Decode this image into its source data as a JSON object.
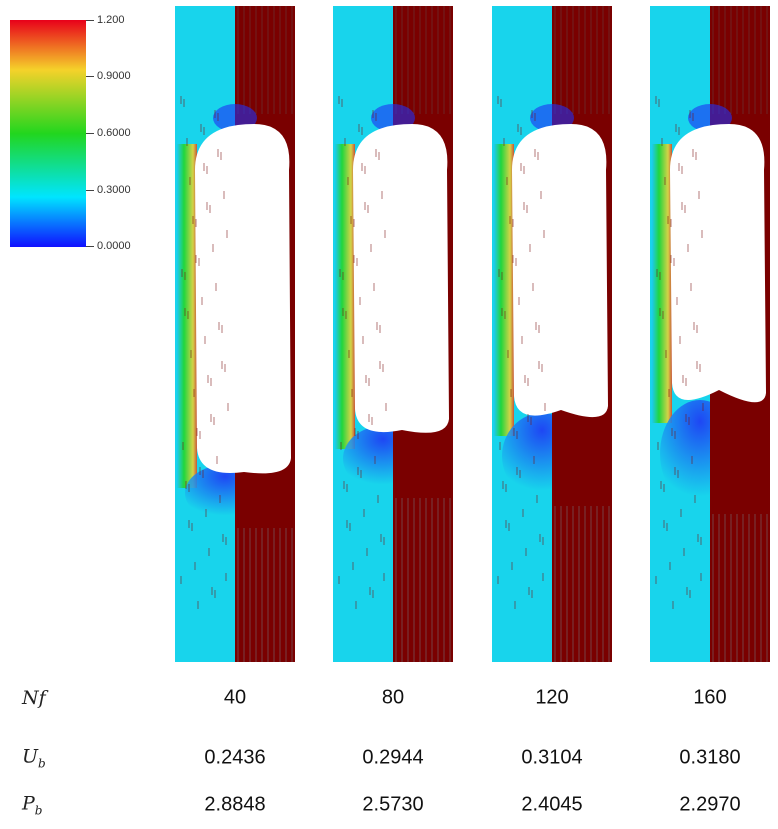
{
  "colorbar": {
    "labels": [
      "1.200",
      "0.9000",
      "0.6000",
      "0.3000",
      "0.0000"
    ],
    "colors": [
      "#e8001a",
      "#f5d22a",
      "#22d61e",
      "#00e5ff",
      "#1010ff"
    ]
  },
  "panels": [
    {
      "nf": "40",
      "ub": "0.2436",
      "pb": "2.8848",
      "bubble_bottom": 0.72,
      "skirt": 0.0
    },
    {
      "nf": "80",
      "ub": "0.2944",
      "pb": "2.5730",
      "bubble_bottom": 0.66,
      "skirt": 0.15
    },
    {
      "nf": "120",
      "ub": "0.3104",
      "pb": "2.4045",
      "bubble_bottom": 0.64,
      "skirt": 0.5
    },
    {
      "nf": "160",
      "ub": "0.3180",
      "pb": "2.2970",
      "bubble_bottom": 0.62,
      "skirt": 0.85
    }
  ],
  "rows": {
    "nf_symbol": "Nf",
    "ub_symbol": "U",
    "ub_sub": "b",
    "pb_symbol": "P",
    "pb_sub": "b"
  },
  "field_colors": {
    "background_cyan": "#18d4ec",
    "streamline_maroon": "#7a0000",
    "deep_blue": "#1f2ef5"
  }
}
